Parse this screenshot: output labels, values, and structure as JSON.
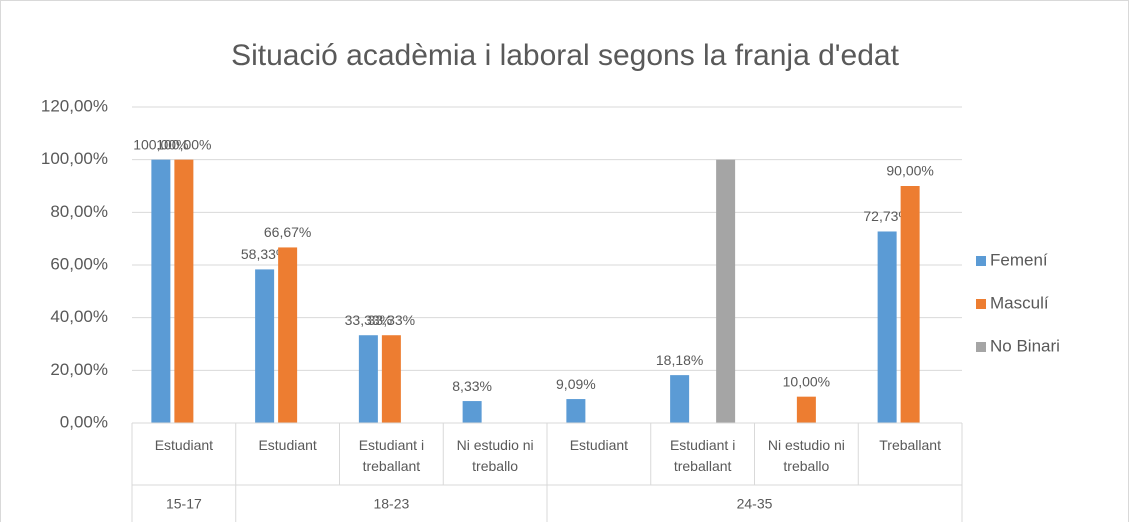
{
  "chart_data": {
    "type": "bar",
    "title": "Situació acadèmia i laboral segons la franja d'edat",
    "categories": [
      "Estudiant",
      "Estudiant",
      "Estudiant i treballant",
      "Ni estudio ni treballo",
      "Estudiant",
      "Estudiant i treballant",
      "Ni estudio ni treballo",
      "Treballant"
    ],
    "category_groups": [
      {
        "label": "15-17",
        "count": 1
      },
      {
        "label": "18-23",
        "count": 3
      },
      {
        "label": "24-35",
        "count": 4
      }
    ],
    "series": [
      {
        "name": "Femení",
        "color": "#5b9bd5",
        "values": [
          100,
          58.33,
          33.33,
          8.33,
          9.09,
          18.18,
          null,
          72.73
        ],
        "value_labels": [
          "100,00%",
          "58,33%",
          "33,33%",
          "8,33%",
          "9,09%",
          "18,18%",
          null,
          "72,73%"
        ]
      },
      {
        "name": "Masculí",
        "color": "#ed7d31",
        "values": [
          100,
          66.67,
          33.33,
          null,
          null,
          null,
          10,
          90
        ],
        "value_labels": [
          "100,00%",
          "66,67%",
          "33,33%",
          null,
          null,
          null,
          "10,00%",
          "90,00%"
        ]
      },
      {
        "name": "No Binari",
        "color": "#a5a5a5",
        "values": [
          null,
          null,
          null,
          null,
          null,
          100,
          null,
          null
        ]
      }
    ],
    "ylim": [
      0,
      120
    ],
    "yticks": [
      {
        "value": 0,
        "label": "0,00%"
      },
      {
        "value": 20,
        "label": "20,00%"
      },
      {
        "value": 40,
        "label": "40,00%"
      },
      {
        "value": 60,
        "label": "60,00%"
      },
      {
        "value": 80,
        "label": "80,00%"
      },
      {
        "value": 100,
        "label": "100,00%"
      },
      {
        "value": 120,
        "label": "120,00%"
      }
    ],
    "grid": true,
    "legend": "right"
  }
}
